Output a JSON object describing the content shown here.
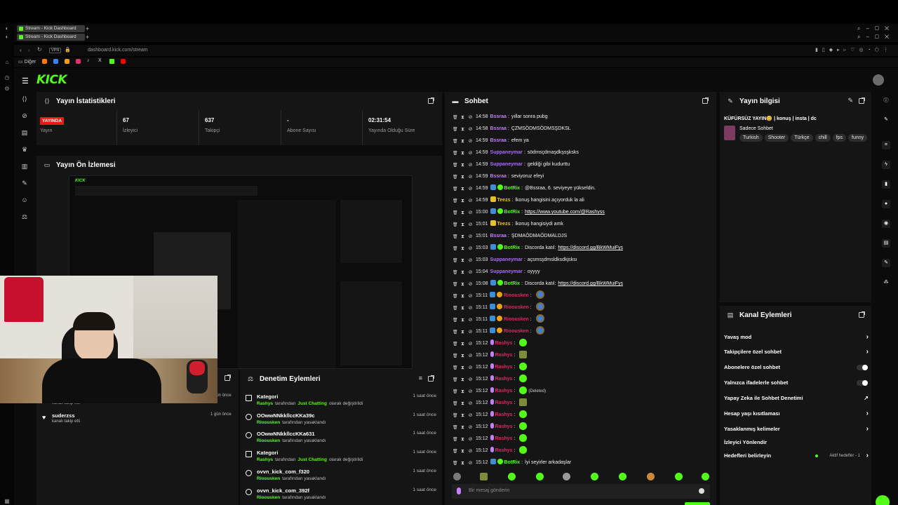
{
  "browser": {
    "tabs": [
      "Stream - Kick Dashboard",
      "Stream - Kick Dashboard"
    ],
    "url": "dashboard.kick.com/stream",
    "vpn_label": "VPN",
    "bookmark_folder": "Diğer"
  },
  "logo": "KICK",
  "stats": {
    "title": "Yayın İstatistikleri",
    "live_badge": "YAYINDA",
    "live_label": "Yayın",
    "viewers": {
      "value": "67",
      "label": "İzleyici"
    },
    "followers": {
      "value": "637",
      "label": "Takipçi"
    },
    "subs": {
      "value": "-",
      "label": "Abone Sayısı"
    },
    "uptime": {
      "value": "02:31:54",
      "label": "Yayında Olduğu Süre"
    }
  },
  "preview": {
    "title": "Yayın Ön İzlemesi"
  },
  "follows": {
    "partial_label": "kanalı takip etti",
    "partial_time": "1 gün önce",
    "item": {
      "user": "suderzss",
      "label": "kanalı takip etti",
      "time": "1 gün önce"
    }
  },
  "moderation": {
    "title": "Denetim Eylemleri",
    "rows": [
      {
        "title": "Kategori",
        "actor": "Rashys",
        "mid": "tarafından",
        "target": "Just Chatting",
        "end": "olarak değiştirildi",
        "time": "1 saat önce",
        "icon": "category-icon"
      },
      {
        "title": "OOwwNNkkllccKKa39c",
        "actor": "Rioousken",
        "mid": "tarafından yasaklandı",
        "target": "",
        "end": "",
        "time": "1 saat önce",
        "icon": "ban-icon"
      },
      {
        "title": "OOwwNNkkllccKKa631",
        "actor": "Rioousken",
        "mid": "tarafından yasaklandı",
        "target": "",
        "end": "",
        "time": "1 saat önce",
        "icon": "ban-icon"
      },
      {
        "title": "Kategori",
        "actor": "Rashys",
        "mid": "tarafından",
        "target": "Just Chatting",
        "end": "olarak değiştirildi",
        "time": "1 saat önce",
        "icon": "category-icon"
      },
      {
        "title": "ovvn_kick_com_f320",
        "actor": "Rioousken",
        "mid": "tarafından yasaklandı",
        "target": "",
        "end": "",
        "time": "1 saat önce",
        "icon": "ban-icon"
      },
      {
        "title": "ovvn_kick_com_392f",
        "actor": "Rioousken",
        "mid": "tarafından yasaklandı",
        "target": "",
        "end": "",
        "time": "1 saat önce",
        "icon": "ban-icon"
      }
    ]
  },
  "chat": {
    "title": "Sohbet",
    "input_placeholder": "Bir mesaj gönderin",
    "messages": [
      {
        "time": "14:58",
        "user": "Bssraa",
        "color": "#c77dff",
        "text": "yıllar sonra pubg"
      },
      {
        "time": "14:58",
        "user": "Bssraa",
        "color": "#c77dff",
        "text": "ÇZMSÖDMSÖDMSŞDKSL"
      },
      {
        "time": "14:59",
        "user": "Bssraa",
        "color": "#c77dff",
        "text": "efem ya"
      },
      {
        "time": "14:59",
        "user": "Suppaneymar",
        "color": "#a86bff",
        "text": "södmsçdmaşdkşsşksks"
      },
      {
        "time": "14:59",
        "user": "Suppaneymar",
        "color": "#a86bff",
        "text": "geldiği gibi kudurttu"
      },
      {
        "time": "14:59",
        "user": "Bssraa",
        "color": "#c77dff",
        "text": "seviyoruz efeyi"
      },
      {
        "time": "14:59",
        "user": "BotRix",
        "color": "#53fc18",
        "text": "@Bssraa, 6. seviyeye yükseldin.",
        "bot": true
      },
      {
        "time": "14:59",
        "user": "Teezs",
        "color": "#e8c12a",
        "text": "lkonuş hangisini açıyorduk la ali"
      },
      {
        "time": "15:00",
        "user": "BotRix",
        "color": "#53fc18",
        "text": "",
        "link": "https://www.youtube.com/@Rashyss",
        "bot": true
      },
      {
        "time": "15:01",
        "user": "Teezs",
        "color": "#e8c12a",
        "text": "lkonuş hangisiydi amk"
      },
      {
        "time": "15:01",
        "user": "Bssraa",
        "color": "#c77dff",
        "text": "ŞDMAÖDMAÖDMALDJS"
      },
      {
        "time": "15:03",
        "user": "BotRix",
        "color": "#53fc18",
        "text": "Discorda katıl:",
        "link": "https://discord.gg/BkWMuiFys",
        "bot": true
      },
      {
        "time": "15:03",
        "user": "Suppaneymar",
        "color": "#a86bff",
        "text": "açsmsşdmsldksdkjsksı"
      },
      {
        "time": "15:04",
        "user": "Suppaneymar",
        "color": "#a86bff",
        "text": "oyyyy"
      },
      {
        "time": "15:08",
        "user": "BotRix",
        "color": "#53fc18",
        "text": "Discorda katıl:",
        "link": "https://discord.gg/BkWMuiFys",
        "bot": true
      },
      {
        "time": "15:11",
        "user": "Rioousken",
        "color": "#e0245e",
        "text": "",
        "emote": "e3"
      },
      {
        "time": "15:11",
        "user": "Rioousken",
        "color": "#e0245e",
        "text": "",
        "emote": "e3"
      },
      {
        "time": "15:11",
        "user": "Rioousken",
        "color": "#e0245e",
        "text": "",
        "emote": "e3"
      },
      {
        "time": "15:11",
        "user": "Rioousken",
        "color": "#e0245e",
        "text": "",
        "emote": "e3"
      },
      {
        "time": "15:12",
        "user": "Rashys",
        "color": "#e0245e",
        "text": "",
        "emote": "e1"
      },
      {
        "time": "15:12",
        "user": "Rashys",
        "color": "#e0245e",
        "text": "",
        "emote": "e2"
      },
      {
        "time": "15:12",
        "user": "Rashys",
        "color": "#e0245e",
        "text": "",
        "emote": "e1"
      },
      {
        "time": "15:12",
        "user": "Rashys",
        "color": "#e0245e",
        "text": "",
        "emote": "e1"
      },
      {
        "time": "15:12",
        "user": "Rashys",
        "color": "#e0245e",
        "text": "",
        "emote": "e1",
        "deleted": "(Deleted)"
      },
      {
        "time": "15:12",
        "user": "Rashys",
        "color": "#e0245e",
        "text": "",
        "emote": "e2"
      },
      {
        "time": "15:12",
        "user": "Rashys",
        "color": "#e0245e",
        "text": "",
        "emote": "e1"
      },
      {
        "time": "15:12",
        "user": "Rashys",
        "color": "#e0245e",
        "text": "",
        "emote": "e1"
      },
      {
        "time": "15:12",
        "user": "Rashys",
        "color": "#e0245e",
        "text": "",
        "emote": "e1"
      },
      {
        "time": "15:12",
        "user": "Rashys",
        "color": "#e0245e",
        "text": "",
        "emote": "e1"
      },
      {
        "time": "15:12",
        "user": "BotRix",
        "color": "#53fc18",
        "text": "İyi seyirler arkadaşlar",
        "bot": true
      }
    ]
  },
  "stream_info": {
    "title": "Yayın bilgisi",
    "stream_title": "KÜFÜRSÜZ YAYIN😊 | konuş | insta | dc",
    "category": "Sadece Sohbet",
    "tags": [
      "Turkish",
      "Shooter",
      "Türkçe",
      "chill",
      "fps",
      "funny"
    ]
  },
  "channel_actions": {
    "title": "Kanal Eylemleri",
    "items": [
      {
        "label": "Yavaş mod",
        "control": "chevron"
      },
      {
        "label": "Takipçilere özel sohbet",
        "control": "chevron"
      },
      {
        "label": "Abonelere özel sohbet",
        "control": "toggle"
      },
      {
        "label": "Yalnızca ifadelerle sohbet",
        "control": "toggle"
      },
      {
        "label": "Yapay Zeka ile Sohbet Denetimi",
        "control": "external"
      },
      {
        "label": "Hesap yaşı kısıtlaması",
        "control": "chevron"
      },
      {
        "label": "Yasaklanmış kelimeler",
        "control": "chevron"
      },
      {
        "label": "İzleyici Yönlendir",
        "control": "none"
      },
      {
        "label": "Hedefleri belirleyin",
        "control": "chevron",
        "extra": "Aktif hedefler - 1"
      }
    ]
  },
  "colors": {
    "brand": "#53fc18",
    "live": "#e91916",
    "panel": "#151515",
    "bg": "#0b0b0b"
  }
}
